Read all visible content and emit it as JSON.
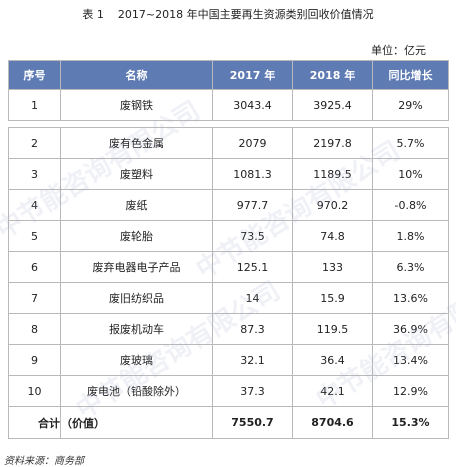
{
  "caption": "表 1    2017~2018 年中国主要再生资源类别回收价值情况",
  "unit": "单位：亿元",
  "headers": [
    "序号",
    "名称",
    "2017 年",
    "2018 年",
    "同比增长"
  ],
  "rows": [
    {
      "idx": "1",
      "name": "废钢铁",
      "y2017": "3043.4",
      "y2018": "3925.4",
      "growth": "29%"
    },
    {
      "idx": "2",
      "name": "废有色金属",
      "y2017": "2079",
      "y2018": "2197.8",
      "growth": "5.7%"
    },
    {
      "idx": "3",
      "name": "废塑料",
      "y2017": "1081.3",
      "y2018": "1189.5",
      "growth": "10%"
    },
    {
      "idx": "4",
      "name": "废纸",
      "y2017": "977.7",
      "y2018": "970.2",
      "growth": "-0.8%"
    },
    {
      "idx": "5",
      "name": "废轮胎",
      "y2017": "73.5",
      "y2018": "74.8",
      "growth": "1.8%"
    },
    {
      "idx": "6",
      "name": "废弃电器电子产品",
      "y2017": "125.1",
      "y2018": "133",
      "growth": "6.3%"
    },
    {
      "idx": "7",
      "name": "废旧纺织品",
      "y2017": "14",
      "y2018": "15.9",
      "growth": "13.6%"
    },
    {
      "idx": "8",
      "name": "报废机动车",
      "y2017": "87.3",
      "y2018": "119.5",
      "growth": "36.9%"
    },
    {
      "idx": "9",
      "name": "废玻璃",
      "y2017": "32.1",
      "y2018": "36.4",
      "growth": "13.4%"
    },
    {
      "idx": "10",
      "name": "废电池（铅酸除外）",
      "y2017": "37.3",
      "y2018": "42.1",
      "growth": "12.9%"
    }
  ],
  "total": {
    "label_a": "合计",
    "label_b": "（价值）",
    "y2017": "7550.7",
    "y2018": "8704.6",
    "growth": "15.3%"
  },
  "source": "资料来源：商务部",
  "watermarks": [
    "中节能咨询有限公司",
    "中节能咨询有限公司",
    "中节能咨询有限公司",
    "中节能咨询有限公司"
  ],
  "colors": {
    "header_bg": "#5e7bb3",
    "header_text": "#ffffff",
    "border": "#b9b9b9"
  }
}
